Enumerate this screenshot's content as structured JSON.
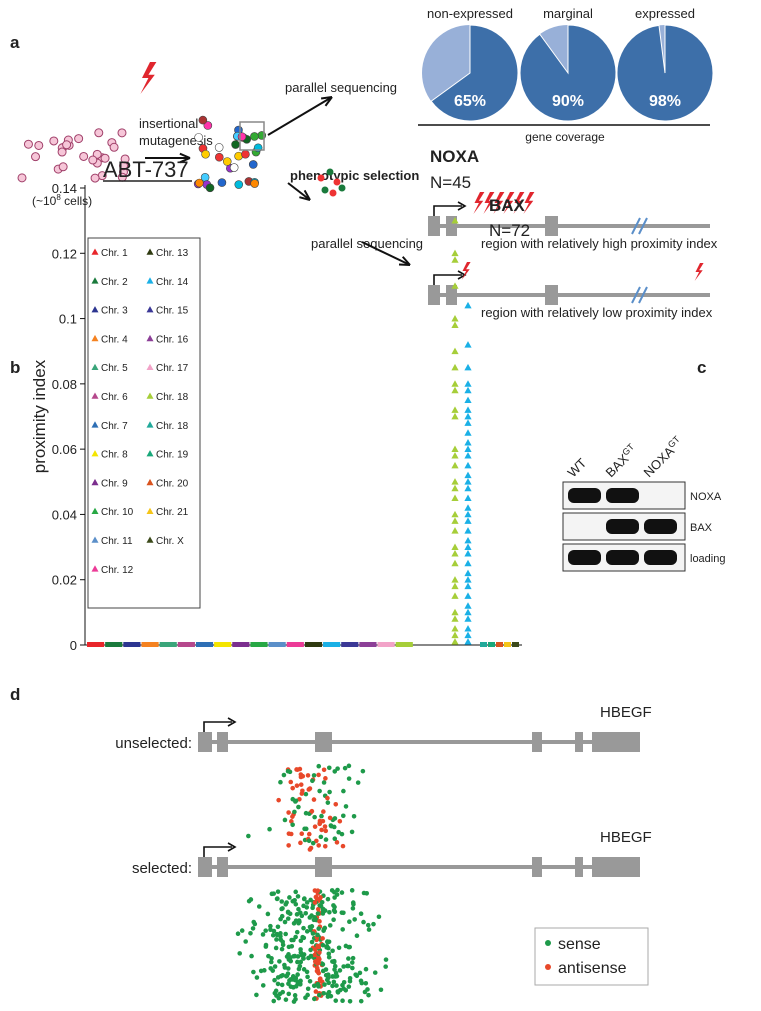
{
  "panel_a": {
    "label": "a",
    "cells_label": {
      "pre": "(~10",
      "sup": "8",
      "post": " cells)"
    },
    "mutagenesis_label": [
      "insertional",
      "mutagenesis"
    ],
    "sequencing_label_top": "parallel sequencing",
    "selection_label": "phenotypic selection",
    "sequencing_label_bottom": "parallel sequencing",
    "region_high": "region with relatively high proximity index",
    "region_low": "region with relatively low proximity index",
    "coverage_label": "gene coverage",
    "chart_data": {
      "type": "pie",
      "categories": [
        "non-expressed",
        "marginal",
        "expressed"
      ],
      "values": [
        65,
        90,
        98
      ],
      "value_labels": [
        "65%",
        "90%",
        "98%"
      ],
      "color": "#3d6fa9",
      "remainder_color": "#98b0d8"
    }
  },
  "panel_b": {
    "label": "b",
    "chart_data": {
      "type": "scatter",
      "title": "ABT-737",
      "y_label": "proximity index",
      "ylim": [
        0,
        0.14
      ],
      "yticks": [
        0,
        0.02,
        0.04,
        0.06,
        0.08,
        0.1,
        0.12,
        0.14
      ],
      "legend": [
        {
          "name": "Chr. 1",
          "color": "#e8262b"
        },
        {
          "name": "Chr. 2",
          "color": "#1a7a3c"
        },
        {
          "name": "Chr. 3",
          "color": "#2c3590"
        },
        {
          "name": "Chr. 4",
          "color": "#f58220"
        },
        {
          "name": "Chr. 5",
          "color": "#3aa57a"
        },
        {
          "name": "Chr. 6",
          "color": "#b5488c"
        },
        {
          "name": "Chr. 7",
          "color": "#2e6fb5"
        },
        {
          "name": "Chr. 8",
          "color": "#f4e500"
        },
        {
          "name": "Chr. 9",
          "color": "#7b2e8e"
        },
        {
          "name": "Chr. 10",
          "color": "#27a844"
        },
        {
          "name": "Chr. 11",
          "color": "#5b8fc9"
        },
        {
          "name": "Chr. 12",
          "color": "#ec3b97"
        },
        {
          "name": "Chr. 13",
          "color": "#2f3a10"
        },
        {
          "name": "Chr. 14",
          "color": "#1ab0e6"
        },
        {
          "name": "Chr. 15",
          "color": "#3b3896"
        },
        {
          "name": "Chr. 16",
          "color": "#8c3f97"
        },
        {
          "name": "Chr. 17",
          "color": "#f2a3c8"
        },
        {
          "name": "Chr. 18",
          "color": "#a6ce39"
        },
        {
          "name": "Chr. 18",
          "color": "#21a99a"
        },
        {
          "name": "Chr. 19",
          "color": "#19a87a"
        },
        {
          "name": "Chr. 20",
          "color": "#d9531e"
        },
        {
          "name": "Chr. 21",
          "color": "#f5c518"
        },
        {
          "name": "Chr. X",
          "color": "#3c4a1a"
        }
      ],
      "series": [
        {
          "name": "NOXA",
          "count_label": "N=45",
          "color": "#a6ce39",
          "values": [
            0.13,
            0.12,
            0.118,
            0.11,
            0.1,
            0.098,
            0.09,
            0.085,
            0.08,
            0.078,
            0.072,
            0.07,
            0.06,
            0.058,
            0.055,
            0.05,
            0.048,
            0.045,
            0.04,
            0.038,
            0.035,
            0.03,
            0.028,
            0.025,
            0.02,
            0.018,
            0.015,
            0.01,
            0.008,
            0.005,
            0.003,
            0.001
          ]
        },
        {
          "name": "BAX",
          "count_label": "N=72",
          "color": "#1ab0e6",
          "values": [
            0.104,
            0.092,
            0.085,
            0.08,
            0.078,
            0.075,
            0.072,
            0.07,
            0.068,
            0.065,
            0.062,
            0.06,
            0.058,
            0.055,
            0.052,
            0.05,
            0.048,
            0.045,
            0.042,
            0.04,
            0.038,
            0.035,
            0.032,
            0.03,
            0.028,
            0.025,
            0.022,
            0.02,
            0.018,
            0.015,
            0.012,
            0.01,
            0.008,
            0.005,
            0.003,
            0.001
          ]
        }
      ]
    }
  },
  "panel_c": {
    "label": "c",
    "lanes": [
      {
        "name": "WT"
      },
      {
        "name": "BAX",
        "sup": "GT"
      },
      {
        "name": "NOXA",
        "sup": "GT"
      }
    ],
    "rows": [
      "NOXA",
      "BAX",
      "loading"
    ]
  },
  "panel_d": {
    "label": "d",
    "gene": "HBEGF",
    "unselected_label": "unselected:",
    "selected_label": "selected:",
    "legend": [
      {
        "name": "sense",
        "color": "#1e9a4a"
      },
      {
        "name": "antisense",
        "color": "#e8482a"
      }
    ]
  }
}
